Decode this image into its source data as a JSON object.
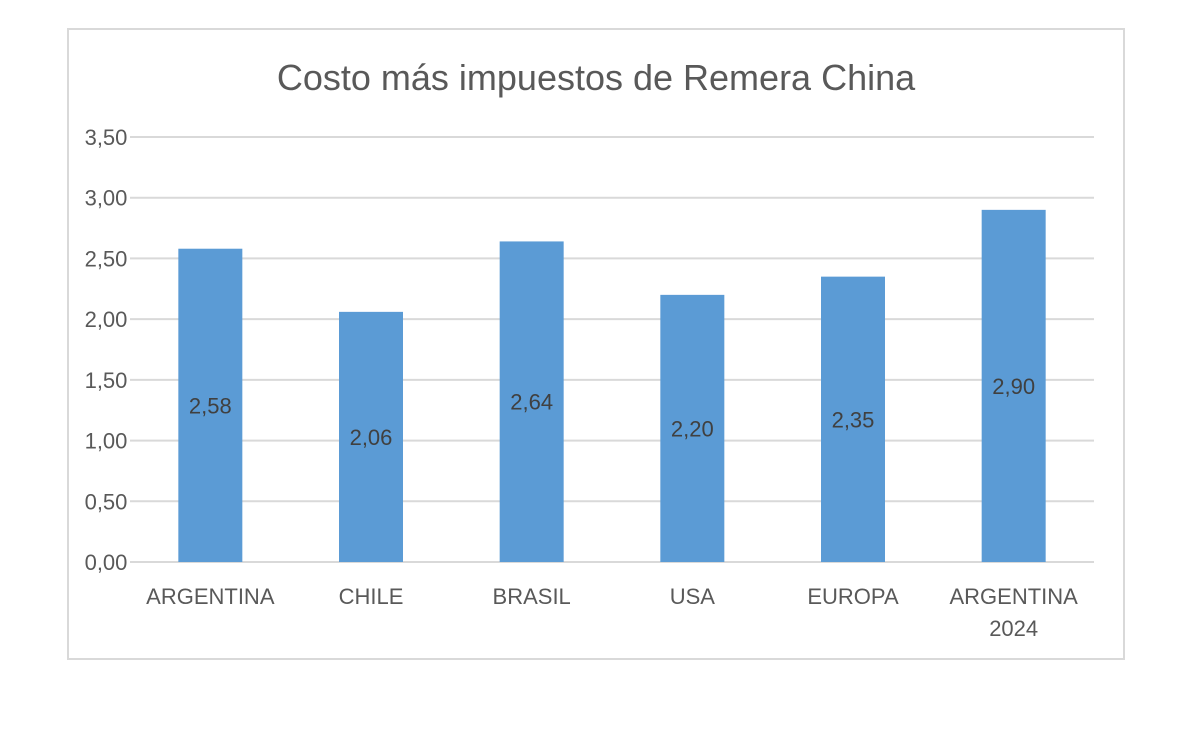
{
  "chart_data": {
    "type": "bar",
    "title": "Costo más impuestos de Remera China",
    "categories": [
      "ARGENTINA",
      "CHILE",
      "BRASIL",
      "USA",
      "EUROPA",
      "ARGENTINA 2024"
    ],
    "category_lines": [
      [
        "ARGENTINA"
      ],
      [
        "CHILE"
      ],
      [
        "BRASIL"
      ],
      [
        "USA"
      ],
      [
        "EUROPA"
      ],
      [
        "ARGENTINA",
        "2024"
      ]
    ],
    "values": [
      2.58,
      2.06,
      2.64,
      2.2,
      2.35,
      2.9
    ],
    "value_labels": [
      "2,58",
      "2,06",
      "2,64",
      "2,20",
      "2,35",
      "2,90"
    ],
    "yticks": [
      0,
      0.5,
      1,
      1.5,
      2,
      2.5,
      3,
      3.5
    ],
    "ytick_labels": [
      "0,00",
      "0,50",
      "1,00",
      "1,50",
      "2,00",
      "2,50",
      "3,00",
      "3,50"
    ],
    "ylim": [
      0,
      3.5
    ],
    "grid": true,
    "legend": "none",
    "colors": {
      "bar": "#5b9bd5",
      "grid": "#d9d9d9",
      "text": "#595959"
    }
  }
}
